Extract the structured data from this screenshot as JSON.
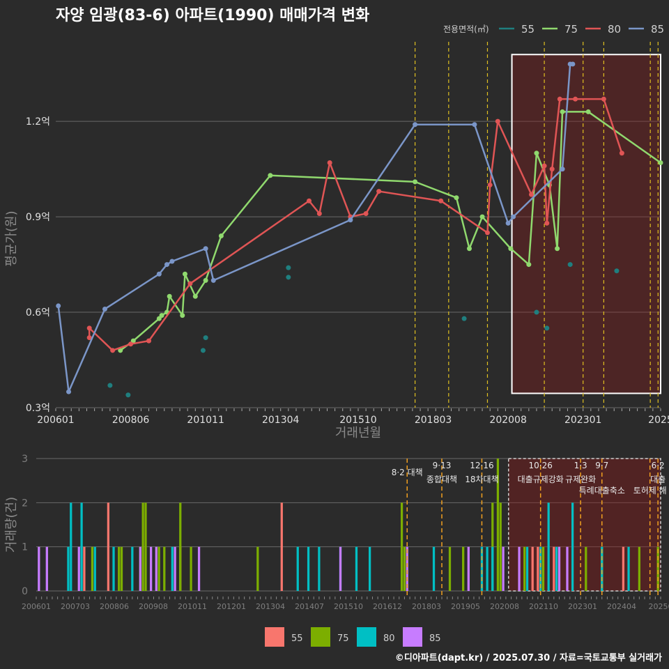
{
  "title": "자양 임광(83-6) 아파트(1990) 매매가격 변화",
  "credit": "©디아파트(dapt.kr) / 2025.07.30 / 자료=국토교통부 실거래가",
  "chart_data": [
    {
      "type": "line",
      "xlabel": "거래년월",
      "ylabel": "평균가(원)",
      "x_range": [
        "2006-01",
        "2025-07"
      ],
      "ylim": [
        0.3,
        1.45
      ],
      "y_ticks": [
        0.3,
        0.6,
        0.9,
        1.2
      ],
      "y_tick_labels": [
        "0.3억",
        "0.6억",
        "0.9억",
        "1.2억"
      ],
      "x_ticks": [
        "2006-01",
        "2008-06",
        "2010-11",
        "2013-04",
        "2015-10",
        "2018-03",
        "2020-08",
        "2023-01",
        "2025-07"
      ],
      "x_tick_labels": [
        "200601",
        "200806",
        "201011",
        "201304",
        "201510",
        "201803",
        "202008",
        "202301",
        "2025"
      ],
      "legend_title": "전용면적(㎡)",
      "legend_position": "top-right",
      "grid": true,
      "highlight_box": [
        "2020-10",
        "2025-07"
      ],
      "policy_lines": [
        "2017-08",
        "2018-09",
        "2019-12",
        "2021-10",
        "2023-01",
        "2023-09",
        "2025-03",
        "2025-06"
      ],
      "series": [
        {
          "name": "55",
          "color": "#1f7f7f",
          "line": false,
          "x": [
            "2007-10",
            "2008-05",
            "2010-10",
            "2010-11",
            "2013-07",
            "2013-07",
            "2019-03",
            "2021-07",
            "2021-11",
            "2022-08",
            "2024-02"
          ],
          "y": [
            0.37,
            0.34,
            0.48,
            0.52,
            0.71,
            0.74,
            0.58,
            0.6,
            0.55,
            0.75,
            0.73
          ]
        },
        {
          "name": "75",
          "color": "#90d96e",
          "line": true,
          "x": [
            "2008-02",
            "2008-07",
            "2009-05",
            "2009-06",
            "2009-08",
            "2009-09",
            "2010-02",
            "2010-03",
            "2010-07",
            "2010-11",
            "2011-05",
            "2012-12",
            "2017-08",
            "2018-12",
            "2019-05",
            "2019-10",
            "2020-09",
            "2021-04",
            "2021-07",
            "2021-12",
            "2022-03",
            "2022-05",
            "2023-03",
            "2025-07"
          ],
          "y": [
            0.48,
            0.51,
            0.58,
            0.59,
            0.6,
            0.65,
            0.59,
            0.72,
            0.65,
            0.7,
            0.84,
            1.03,
            1.01,
            0.96,
            0.8,
            0.9,
            0.8,
            0.75,
            1.1,
            1.0,
            0.8,
            1.23,
            1.23,
            1.07
          ]
        },
        {
          "name": "80",
          "color": "#e05555",
          "line": true,
          "x": [
            "2007-02",
            "2007-02",
            "2007-11",
            "2008-06",
            "2009-01",
            "2010-05",
            "2014-03",
            "2014-07",
            "2014-11",
            "2015-07",
            "2016-01",
            "2016-06",
            "2018-06",
            "2019-12",
            "2020-01",
            "2020-04",
            "2021-05",
            "2021-10",
            "2021-11",
            "2022-01",
            "2022-04",
            "2022-10",
            "2023-09",
            "2024-04"
          ],
          "y": [
            0.52,
            0.55,
            0.48,
            0.5,
            0.51,
            0.69,
            0.95,
            0.91,
            1.07,
            0.9,
            0.91,
            0.98,
            0.95,
            0.85,
            1.0,
            1.2,
            0.97,
            1.06,
            0.88,
            1.05,
            1.27,
            1.27,
            1.27,
            1.1
          ]
        },
        {
          "name": "85",
          "color": "#7b96c8",
          "line": true,
          "x": [
            "2006-02",
            "2006-06",
            "2007-08",
            "2009-05",
            "2009-08",
            "2009-10",
            "2010-11",
            "2011-02",
            "2015-07",
            "2017-08",
            "2019-07",
            "2020-08",
            "2020-10",
            "2022-05",
            "2022-08",
            "2022-09"
          ],
          "y": [
            0.62,
            0.35,
            0.61,
            0.72,
            0.75,
            0.76,
            0.8,
            0.7,
            0.89,
            1.19,
            1.19,
            0.88,
            0.9,
            1.05,
            1.38,
            1.38
          ]
        }
      ]
    },
    {
      "type": "bar",
      "ylabel": "거래량(건)",
      "ylim": [
        0,
        3
      ],
      "y_ticks": [
        0,
        1,
        2,
        3
      ],
      "x_range": [
        "2006-01",
        "2025-07"
      ],
      "x_tick_labels": [
        "200601",
        "200703",
        "200806",
        "200908",
        "201011",
        "201201",
        "201304",
        "201407",
        "201510",
        "201612",
        "201803",
        "201905",
        "202008",
        "202110",
        "202301",
        "202404",
        "20250"
      ],
      "legend_position": "bottom",
      "highlight_box": [
        "2020-10",
        "2025-07"
      ],
      "annotations": [
        {
          "date": "2017-08",
          "date_label": "",
          "text": "8·2 대책"
        },
        {
          "date": "2018-09",
          "date_label": "9·13",
          "text": "종합대책"
        },
        {
          "date": "2019-12",
          "date_label": "12·16",
          "text": "18차대책"
        },
        {
          "date": "2021-10",
          "date_label": "10·26",
          "text": "대출규제강화"
        },
        {
          "date": "2023-01",
          "date_label": "1·3",
          "text": "규제완화"
        },
        {
          "date": "2023-09",
          "date_label": "9·7",
          "text": "특례대출축소"
        },
        {
          "date": "2025-03",
          "date_label": "",
          "text": "토허제 해"
        },
        {
          "date": "2025-06",
          "date_label": "6·2",
          "text": "대출"
        }
      ],
      "series": [
        {
          "name": "55",
          "color": "#f8766d",
          "x": [
            "2007-07",
            "2008-04",
            "2010-07",
            "2013-09",
            "2021-07",
            "2021-09",
            "2022-03",
            "2024-05"
          ],
          "y": [
            1,
            2,
            1,
            2,
            1,
            1,
            1,
            1
          ]
        },
        {
          "name": "75",
          "color": "#7cae00",
          "x": [
            "2007-10",
            "2008-08",
            "2008-09",
            "2009-04",
            "2009-05",
            "2009-06",
            "2009-11",
            "2010-01",
            "2010-07",
            "2010-11",
            "2012-12",
            "2017-06",
            "2017-07",
            "2018-12",
            "2019-05",
            "2020-04",
            "2020-06",
            "2020-07",
            "2021-04",
            "2021-11",
            "2023-03",
            "2023-09",
            "2024-11",
            "2025-06"
          ],
          "y": [
            1,
            1,
            1,
            1,
            2,
            2,
            1,
            1,
            2,
            1,
            1,
            2,
            1,
            1,
            1,
            2,
            3,
            2,
            1,
            1,
            1,
            1,
            1,
            1
          ]
        },
        {
          "name": "80",
          "color": "#00bfc4",
          "x": [
            "2007-01",
            "2007-02",
            "2007-06",
            "2007-11",
            "2008-06",
            "2009-01",
            "2010-04",
            "2014-03",
            "2014-07",
            "2014-11",
            "2015-07",
            "2016-01",
            "2016-06",
            "2018-06",
            "2019-12",
            "2020-02",
            "2020-04",
            "2021-05",
            "2021-10",
            "2022-01",
            "2022-04",
            "2022-10",
            "2023-09",
            "2024-07"
          ],
          "y": [
            1,
            2,
            2,
            1,
            1,
            1,
            1,
            1,
            1,
            1,
            1,
            1,
            1,
            1,
            1,
            1,
            1,
            1,
            1,
            2,
            1,
            2,
            1,
            1
          ]
        },
        {
          "name": "85",
          "color": "#c77cff",
          "x": [
            "2006-02",
            "2006-05",
            "2007-05",
            "2009-04",
            "2009-08",
            "2009-10",
            "2010-05",
            "2011-02",
            "2015-07",
            "2017-08",
            "2019-07",
            "2020-08",
            "2021-02",
            "2022-05",
            "2022-08"
          ],
          "y": [
            1,
            1,
            1,
            1,
            1,
            1,
            1,
            1,
            1,
            1,
            1,
            1,
            1,
            1,
            1
          ]
        }
      ]
    }
  ]
}
